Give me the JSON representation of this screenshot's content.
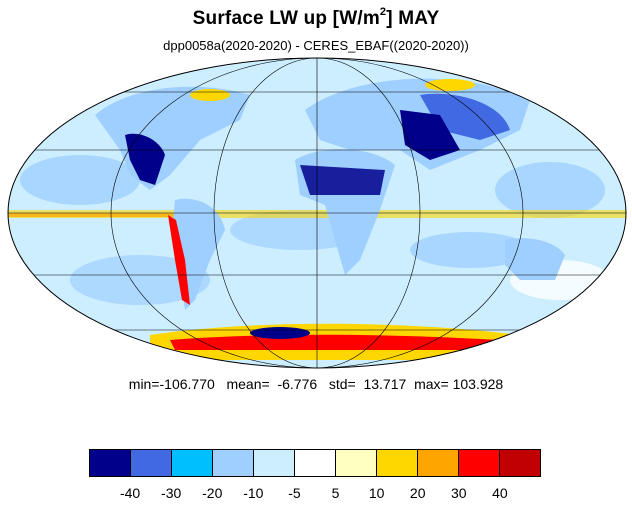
{
  "title": {
    "main": "Surface LW up [W/m",
    "sup": "2",
    "tail": "]  MAY"
  },
  "subtitle": "dpp0058a(2020-2020) - CERES_EBAF((2020-2020))",
  "stats": {
    "min_label": "min=",
    "min": "-106.770",
    "mean_label": "mean=",
    "mean": "-6.776",
    "std_label": "std=",
    "std": "13.717",
    "max_label": "max=",
    "max": "103.928"
  },
  "colorbar": {
    "colors": [
      "#00008b",
      "#4169e1",
      "#00bfff",
      "#9fcfff",
      "#cceeff",
      "#ffffff",
      "#ffffc0",
      "#ffd700",
      "#ffa500",
      "#ff0000",
      "#c00000"
    ],
    "labels": [
      "-40",
      "-30",
      "-20",
      "-10",
      "-5",
      "5",
      "10",
      "20",
      "30",
      "40"
    ]
  },
  "map": {
    "projection": "Mollweide",
    "colors": {
      "ocean_base": "#cceeff",
      "land_base": "#9fcfff",
      "grid": "#000000",
      "coast": "#000000"
    }
  }
}
